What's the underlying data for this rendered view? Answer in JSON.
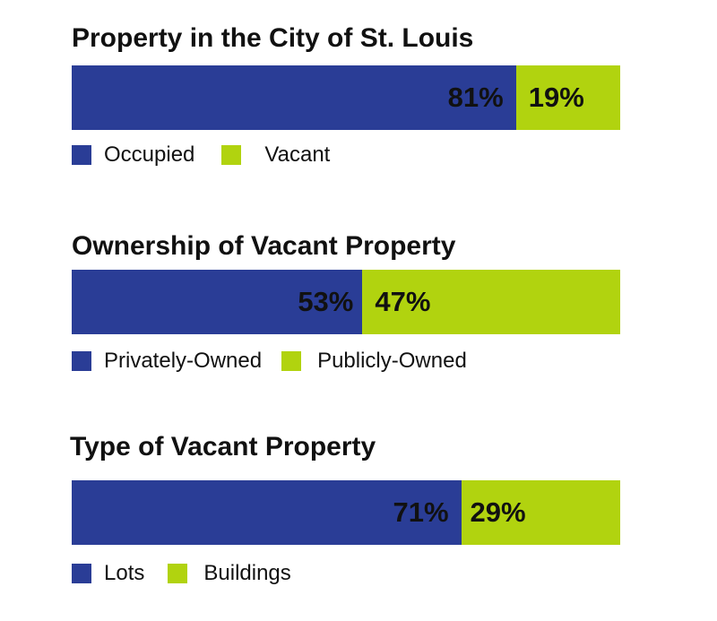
{
  "colors": {
    "primary": "#2a3d96",
    "secondary": "#b1d30f"
  },
  "chart_data": [
    {
      "type": "bar",
      "orientation": "horizontal-stacked-100",
      "title": "Property in the City of St. Louis",
      "series": [
        {
          "name": "Occupied",
          "value": 81,
          "label": "81%"
        },
        {
          "name": "Vacant",
          "value": 19,
          "label": "19%"
        }
      ]
    },
    {
      "type": "bar",
      "orientation": "horizontal-stacked-100",
      "title": "Ownership of Vacant Property",
      "series": [
        {
          "name": "Privately-Owned",
          "value": 53,
          "label": "53%"
        },
        {
          "name": "Publicly-Owned",
          "value": 47,
          "label": "47%"
        }
      ]
    },
    {
      "type": "bar",
      "orientation": "horizontal-stacked-100",
      "title": "Type of Vacant Property",
      "series": [
        {
          "name": "Lots",
          "value": 71,
          "label": "71%"
        },
        {
          "name": "Buildings",
          "value": 29,
          "label": "29%"
        }
      ]
    }
  ]
}
